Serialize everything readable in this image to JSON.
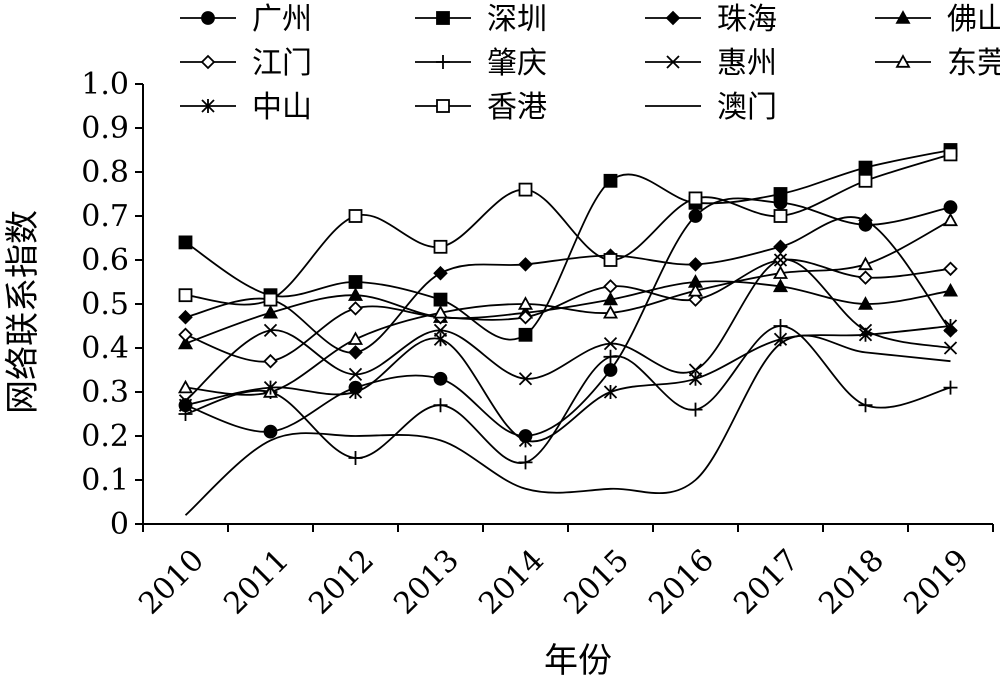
{
  "chart_data": {
    "type": "line",
    "xlabel": "年份",
    "ylabel": "网络联系指数",
    "ylim": [
      0,
      1.0
    ],
    "y_ticks": [
      0,
      0.1,
      0.2,
      0.3,
      0.4,
      0.5,
      0.6,
      0.7,
      0.8,
      0.9,
      1.0
    ],
    "y_tick_labels": [
      "0",
      "0.1",
      "0.2",
      "0.3",
      "0.4",
      "0.5",
      "0.6",
      "0.7",
      "0.8",
      "0.9",
      "1.0"
    ],
    "categories": [
      "2010",
      "2011",
      "2012",
      "2013",
      "2014",
      "2015",
      "2016",
      "2017",
      "2018",
      "2019"
    ],
    "grid": false,
    "legend_position": "top",
    "smooth": true,
    "series": [
      {
        "name": "广州",
        "marker": "circle-filled",
        "values": [
          0.27,
          0.21,
          0.31,
          0.33,
          0.2,
          0.35,
          0.7,
          0.73,
          0.68,
          0.72
        ]
      },
      {
        "name": "深圳",
        "marker": "square-filled",
        "values": [
          0.64,
          0.52,
          0.55,
          0.51,
          0.43,
          0.78,
          0.73,
          0.75,
          0.81,
          0.85
        ]
      },
      {
        "name": "珠海",
        "marker": "diamond-filled",
        "values": [
          0.47,
          0.51,
          0.39,
          0.57,
          0.59,
          0.61,
          0.59,
          0.63,
          0.69,
          0.44
        ]
      },
      {
        "name": "佛山",
        "marker": "triangle-filled",
        "values": [
          0.41,
          0.48,
          0.52,
          0.47,
          0.48,
          0.51,
          0.55,
          0.54,
          0.5,
          0.53
        ]
      },
      {
        "name": "江门",
        "marker": "diamond-open",
        "values": [
          0.43,
          0.37,
          0.49,
          0.47,
          0.47,
          0.54,
          0.51,
          0.6,
          0.56,
          0.58
        ]
      },
      {
        "name": "肇庆",
        "marker": "plus",
        "values": [
          0.25,
          0.3,
          0.15,
          0.27,
          0.14,
          0.38,
          0.26,
          0.45,
          0.27,
          0.31
        ]
      },
      {
        "name": "惠州",
        "marker": "x",
        "values": [
          0.28,
          0.44,
          0.34,
          0.44,
          0.33,
          0.41,
          0.35,
          0.6,
          0.44,
          0.4
        ]
      },
      {
        "name": "东莞",
        "marker": "triangle-open",
        "values": [
          0.31,
          0.3,
          0.42,
          0.48,
          0.5,
          0.48,
          0.53,
          0.57,
          0.59,
          0.69
        ]
      },
      {
        "name": "中山",
        "marker": "asterisk",
        "values": [
          0.27,
          0.31,
          0.3,
          0.42,
          0.19,
          0.3,
          0.33,
          0.42,
          0.43,
          0.45
        ]
      },
      {
        "name": "香港",
        "marker": "square-open",
        "values": [
          0.52,
          0.51,
          0.7,
          0.63,
          0.76,
          0.6,
          0.74,
          0.7,
          0.78,
          0.84
        ]
      },
      {
        "name": "澳门",
        "marker": "none",
        "values": [
          0.02,
          0.19,
          0.2,
          0.19,
          0.08,
          0.08,
          0.1,
          0.41,
          0.39,
          0.37
        ]
      }
    ]
  }
}
